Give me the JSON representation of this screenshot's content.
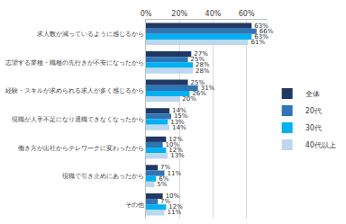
{
  "chart_data": {
    "type": "bar",
    "orientation": "horizontal",
    "categories": [
      "求人数が減っているように感じるから",
      "志望する業種・職種の先行きが不安になったから",
      "経験・スキルが求められる求人が多く感じるから",
      "現職が人手不足になり退職できなくなったから",
      "働き方が出社からテレワークに変わったから",
      "現職で引き止めにあったから",
      "その他"
    ],
    "series": [
      {
        "name": "全体",
        "color": "#1f3864",
        "values": [
          63,
          27,
          25,
          14,
          12,
          7,
          10
        ],
        "value_labels": [
          "63%",
          "27%",
          "25%",
          "14%",
          "12%",
          "7%",
          "10%"
        ]
      },
      {
        "name": "20代",
        "color": "#2e75b6",
        "values": [
          66,
          25,
          31,
          15,
          10,
          11,
          7
        ],
        "value_labels": [
          "66%",
          "25%",
          "31%",
          "15%",
          "10%",
          "11%",
          "7%"
        ]
      },
      {
        "name": "30代",
        "color": "#00b0f0",
        "values": [
          63,
          28,
          26,
          13,
          12,
          6,
          12
        ],
        "value_labels": [
          "63%",
          "28%",
          "26%",
          "13%",
          "12%",
          "6%",
          "12%"
        ]
      },
      {
        "name": "40代以上",
        "color": "#bdd7ee",
        "values": [
          61,
          28,
          20,
          14,
          13,
          5,
          11
        ],
        "value_labels": [
          "61%",
          "28%",
          "20%",
          "14%",
          "13%",
          "5%",
          "11%"
        ]
      }
    ],
    "xlim": [
      0,
      72
    ],
    "xticks": [
      {
        "value": 0,
        "label": "0%"
      },
      {
        "value": 20,
        "label": "20%"
      },
      {
        "value": 40,
        "label": "40%"
      },
      {
        "value": 60,
        "label": "60%"
      }
    ],
    "grid": true,
    "data_labels": true,
    "legend": "right"
  }
}
